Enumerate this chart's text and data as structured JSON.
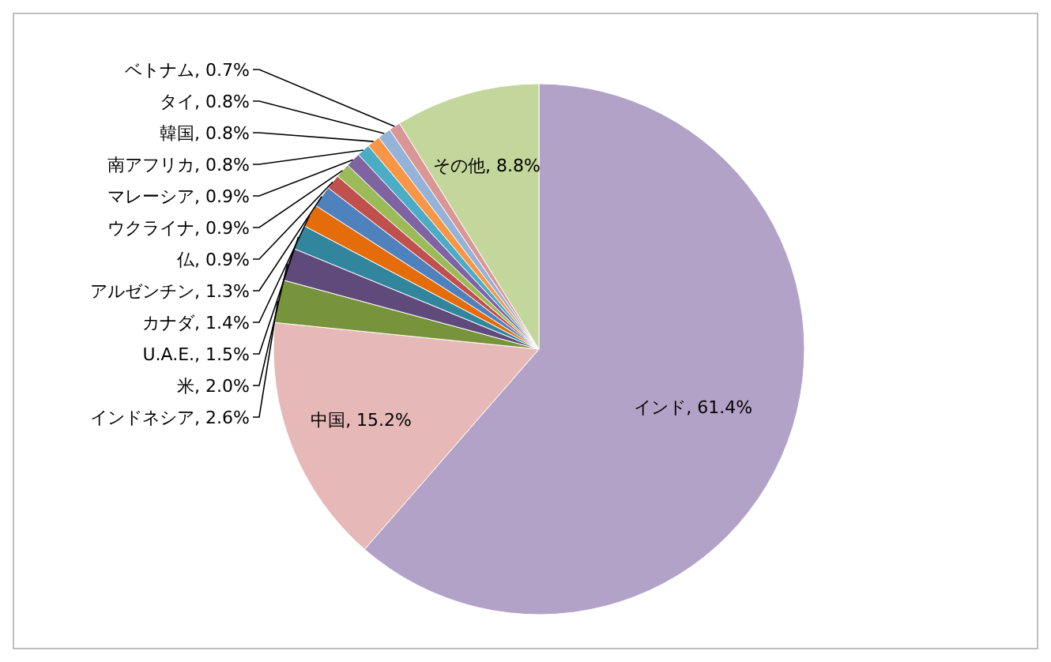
{
  "chart_data": {
    "type": "pie",
    "categories": [
      "インド",
      "中国",
      "インドネシア",
      "米",
      "U.A.E.",
      "カナダ",
      "アルゼンチン",
      "仏",
      "ウクライナ",
      "マレーシア",
      "南アフリカ",
      "韓国",
      "タイ",
      "ベトナム",
      "その他"
    ],
    "values": [
      61.4,
      15.2,
      2.6,
      2.0,
      1.5,
      1.4,
      1.3,
      0.9,
      0.9,
      0.9,
      0.8,
      0.8,
      0.8,
      0.7,
      8.8
    ],
    "value_labels": [
      "61.4%",
      "15.2%",
      "2.6%",
      "2.0%",
      "1.5%",
      "1.4%",
      "1.3%",
      "0.9%",
      "0.9%",
      "0.9%",
      "0.8%",
      "0.8%",
      "0.8%",
      "0.7%",
      "8.8%"
    ],
    "colors": [
      "#b3a2c7",
      "#e6b9b8",
      "#77933c",
      "#604a7b",
      "#31859c",
      "#e46c0a",
      "#4f81bd",
      "#c0504d",
      "#9bbb59",
      "#8064a2",
      "#4bacc6",
      "#f79646",
      "#95b3d7",
      "#d99694",
      "#c3d69b"
    ]
  }
}
